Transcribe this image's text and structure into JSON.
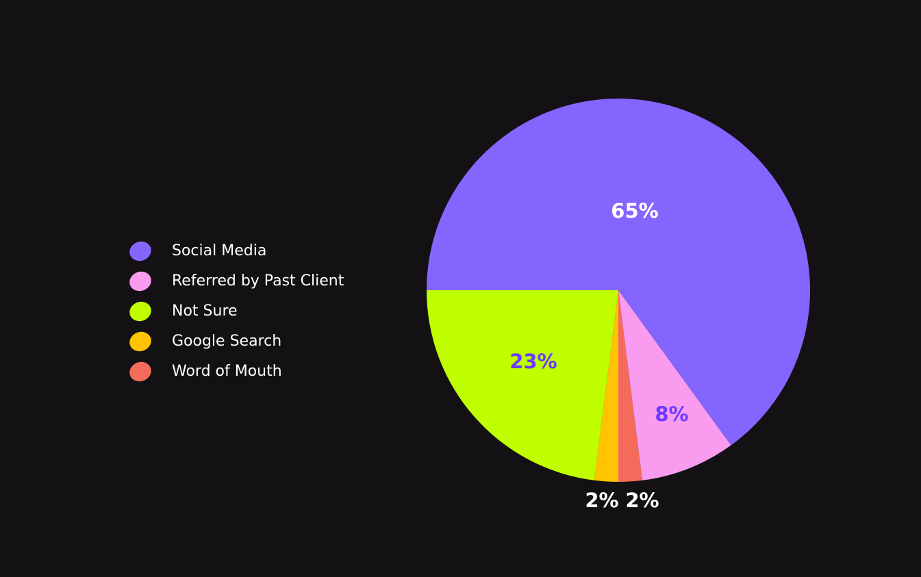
{
  "chart_data": {
    "type": "pie",
    "categories": [
      "Social Media",
      "Referred by Past Client",
      "Not Sure",
      "Google Search",
      "Word of Mouth"
    ],
    "values": [
      65,
      8,
      23,
      2,
      2
    ],
    "value_labels": [
      "65%",
      "8%",
      "23%",
      "2%",
      "2%"
    ],
    "colors": [
      "#8466ff",
      "#f99cf0",
      "#bfff00",
      "#ffc300",
      "#f46b5c"
    ],
    "legend": "left"
  }
}
